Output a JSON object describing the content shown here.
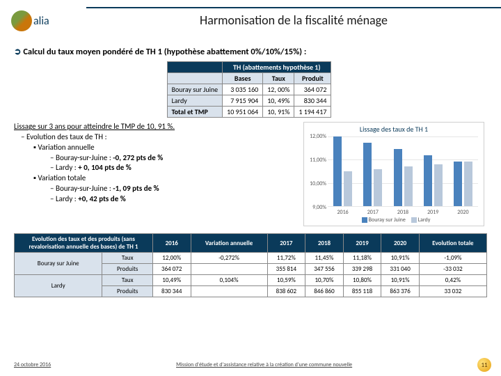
{
  "logo_text": "alia",
  "title": "Harmonisation de la fiscalité ménage",
  "lead": "Calcul du taux moyen pondéré de TH 1 (hypothèse abattement 0%/10%/15%) :",
  "t1": {
    "header": "TH (abattements hypothèse 1)",
    "subcols": [
      "Bases",
      "Taux",
      "Produit"
    ],
    "rows": [
      {
        "name": "Bouray sur Juine",
        "bases": "3 035 160",
        "taux": "12, 00%",
        "produit": "364 072"
      },
      {
        "name": "Lardy",
        "bases": "7 915 904",
        "taux": "10, 49%",
        "produit": "830 344"
      },
      {
        "name": "Total et TMP",
        "bases": "10 951 064",
        "taux": "10, 91%",
        "produit": "1 194 417",
        "total": true
      }
    ]
  },
  "bullets": {
    "lissage": "Lissage sur 3 ans pour atteindre le TMP de 10, 91 %.",
    "evo": "Evolution des taux de TH :",
    "va": "Variation annuelle",
    "va1": "Bouray-sur-Juine : -0, 272 pts de %",
    "va2": "Lardy : + 0, 104 pts de %",
    "vt": "Variation totale",
    "vt1": "Bouray-sur-Juine : -1, 09 pts de %",
    "vt2": "Lardy : +0, 42 pts de %"
  },
  "chart": {
    "title": "Lissage des taux de TH 1",
    "ylim": [
      9.0,
      12.0
    ],
    "yticks": [
      9.0,
      10.0,
      11.0,
      12.0
    ],
    "yticklabels": [
      "9,00%",
      "10,00%",
      "11,00%",
      "12,00%"
    ],
    "years": [
      "2016",
      "2017",
      "2018",
      "2019",
      "2020"
    ],
    "series": [
      {
        "name": "Bouray sur Juine",
        "color": "#4a82bd",
        "values": [
          12.0,
          11.72,
          11.45,
          11.18,
          10.91
        ]
      },
      {
        "name": "Lardy",
        "color": "#b8c8db",
        "values": [
          10.49,
          10.59,
          10.7,
          10.8,
          10.91
        ]
      }
    ],
    "background": "#ffffff",
    "grid_color": "#e6e6e6",
    "label_fontsize": 8,
    "title_fontsize": 10
  },
  "t2": {
    "title": "Evolution des taux et des produits (sans revalorisation annuelle des bases) de TH 1",
    "cols": [
      "2016",
      "Variation annuelle",
      "2017",
      "2018",
      "2019",
      "2020",
      "Evolution totale"
    ],
    "rows": [
      {
        "name": "Bouray sur Juine",
        "lines": [
          {
            "label": "Taux",
            "vals": [
              "12,00%",
              "-0,272%",
              "11,72%",
              "11,45%",
              "11,18%",
              "10,91%",
              "-1,09%"
            ]
          },
          {
            "label": "Produits",
            "vals": [
              "364 072",
              "",
              "355 814",
              "347 556",
              "339 298",
              "331 040",
              "-33 032"
            ]
          }
        ]
      },
      {
        "name": "Lardy",
        "lines": [
          {
            "label": "Taux",
            "vals": [
              "10,49%",
              "0,104%",
              "10,59%",
              "10,70%",
              "10,80%",
              "10,91%",
              "0,42%"
            ]
          },
          {
            "label": "Produits",
            "vals": [
              "830 344",
              "",
              "838 602",
              "846 860",
              "855 118",
              "863 376",
              "33 032"
            ]
          }
        ]
      }
    ]
  },
  "footer": {
    "date": "24 octobre 2016",
    "mission": "Mission d'étude et d'assistance relative à la création d'une commune nouvelle",
    "page": "11"
  }
}
